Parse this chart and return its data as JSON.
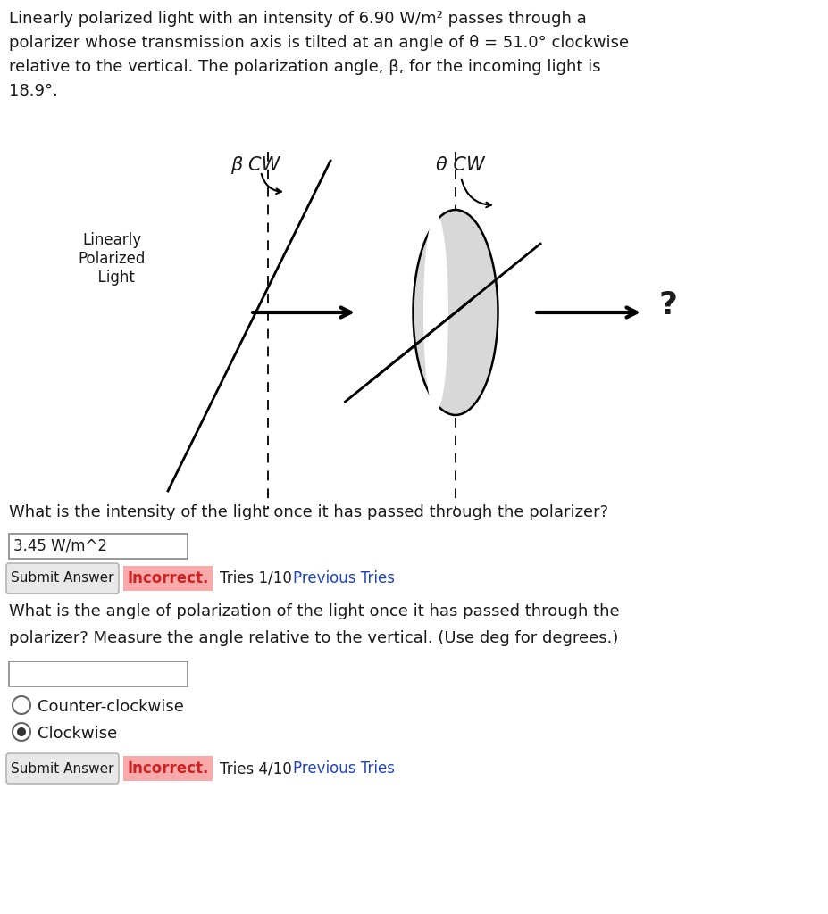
{
  "title_text_line1": "Linearly polarized light with an intensity of 6.90 W/m² passes through a",
  "title_text_line2": "polarizer whose transmission axis is tilted at an angle of θ = 51.0° clockwise",
  "title_text_line3": "relative to the vertical. The polarization angle, β, for the incoming light is",
  "title_text_line4": "18.9°.",
  "diagram_label_left": "Linearly\nPolarized\n  Light",
  "diagram_label_beta": "β CW",
  "diagram_label_theta": "θ CW",
  "diagram_question_mark": "?",
  "question1": "What is the intensity of the light once it has passed through the polarizer?",
  "answer1": "3.45 W/m^2",
  "button_text": "Submit Answer",
  "incorrect1": "Incorrect.",
  "tries1": "Tries 1/10",
  "previous_tries": "Previous Tries",
  "question2_line1": "What is the angle of polarization of the light once it has passed through the",
  "question2_line2": "polarizer? Measure the angle relative to the vertical. (Use deg for degrees.)",
  "radio1": "Counter-clockwise",
  "radio2": "Clockwise",
  "incorrect2": "Incorrect.",
  "tries2": "Tries 4/10",
  "font_color": "#1a1a1a",
  "incorrect_bg": "#f8aaaa",
  "incorrect_text": "#cc2222",
  "link_color": "#2244bb",
  "btn_bg": "#e8e8e8",
  "btn_border": "#aaaaaa"
}
